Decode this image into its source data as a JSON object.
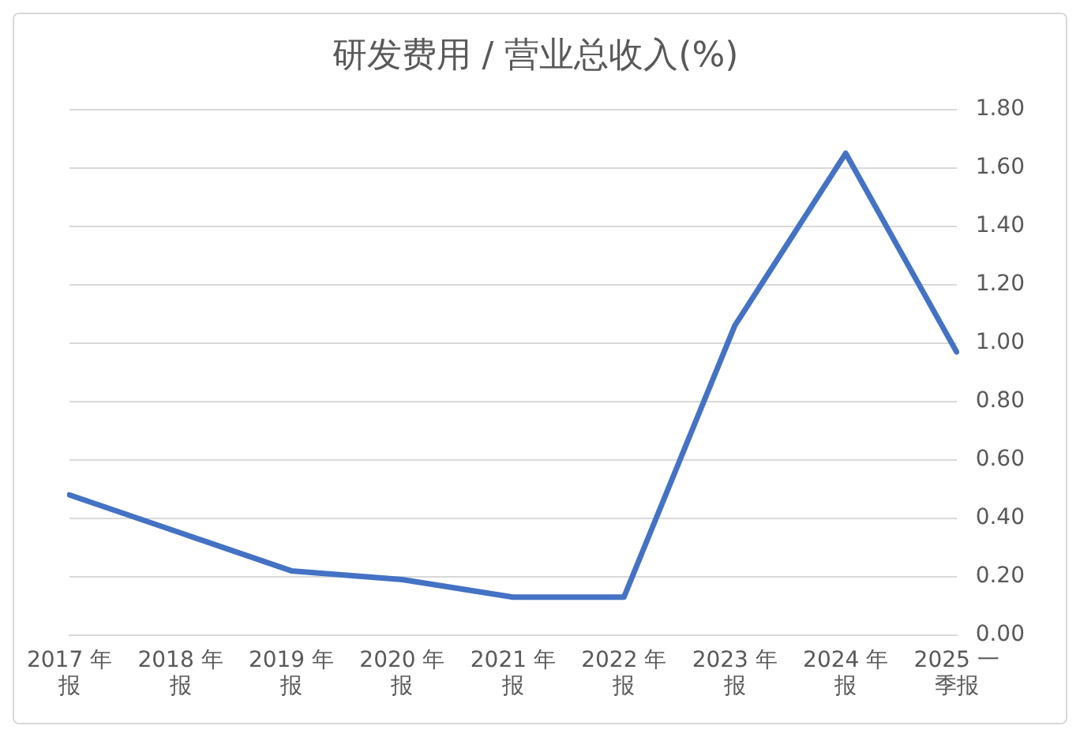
{
  "chart_data": {
    "type": "line",
    "title": "研发费用 / 营业总收入(%)",
    "categories": [
      "2017 年报",
      "2018 年报",
      "2019 年报",
      "2020 年报",
      "2021 年报",
      "2022 年报",
      "2023 年报",
      "2024 年报",
      "2025 一季报"
    ],
    "series": [
      {
        "color": "#4472c4",
        "values": [
          0.48,
          0.35,
          0.22,
          0.19,
          0.13,
          0.13,
          1.06,
          1.65,
          0.97
        ]
      }
    ],
    "ylim": [
      0,
      1.8
    ],
    "yticks": [
      {
        "value": 0,
        "label": "0.00"
      },
      {
        "value": 0.2,
        "label": "0.20"
      },
      {
        "value": 0.4,
        "label": "0.40"
      },
      {
        "value": 0.6,
        "label": "0.60"
      },
      {
        "value": 0.8,
        "label": "0.80"
      },
      {
        "value": 1,
        "label": "1.00"
      },
      {
        "value": 1.2,
        "label": "1.20"
      },
      {
        "value": 1.4,
        "label": "1.40"
      },
      {
        "value": 1.6,
        "label": "1.60"
      },
      {
        "value": 1.8,
        "label": "1.80"
      }
    ],
    "grid": "y",
    "legend": false,
    "marker": "none",
    "line_style": "solid"
  }
}
